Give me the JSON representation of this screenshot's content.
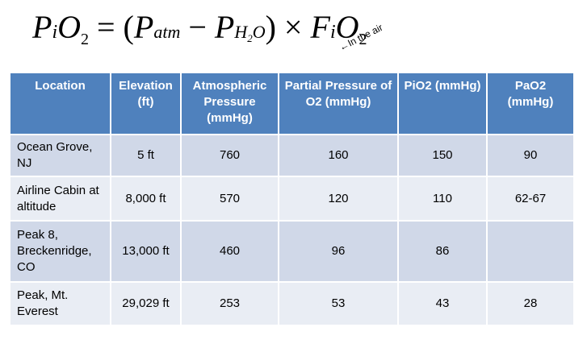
{
  "note": "In the air",
  "table": {
    "headers": [
      "Location",
      "Elevation (ft)",
      "Atmospheric Pressure (mmHg)",
      "Partial Pressure of O2 (mmHg)",
      "PiO2 (mmHg)",
      "PaO2 (mmHg)"
    ],
    "rows": [
      [
        "Ocean Grove, NJ",
        "5 ft",
        "760",
        "160",
        "150",
        "90"
      ],
      [
        "Airline Cabin at altitude",
        "8,000 ft",
        "570",
        "120",
        "110",
        "62-67"
      ],
      [
        "Peak 8, Breckenridge, CO",
        "13,000 ft",
        "460",
        "96",
        "86",
        ""
      ],
      [
        "Peak, Mt. Everest",
        "29,029 ft",
        "253",
        "53",
        "43",
        "28"
      ]
    ]
  }
}
